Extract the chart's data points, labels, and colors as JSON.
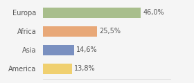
{
  "categories": [
    "Europa",
    "Africa",
    "Asia",
    "America"
  ],
  "values": [
    46.0,
    25.5,
    14.6,
    13.8
  ],
  "labels": [
    "46,0%",
    "25,5%",
    "14,6%",
    "13,8%"
  ],
  "bar_colors": [
    "#a8be8c",
    "#e8a878",
    "#7a90c0",
    "#f0d070"
  ],
  "background_color": "#f5f5f5",
  "xlim": [
    0,
    60
  ],
  "bar_height": 0.55,
  "label_fontsize": 7.0,
  "category_fontsize": 7.0
}
